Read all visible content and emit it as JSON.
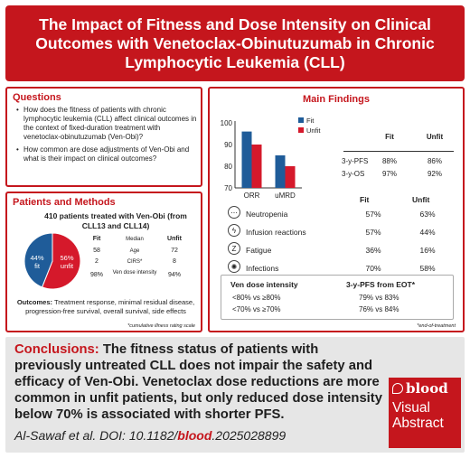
{
  "header": {
    "title": "The Impact of Fitness and Dose Intensity on Clinical Outcomes with Venetoclax-Obinutuzumab in Chronic Lymphocytic Leukemia (CLL)"
  },
  "questions": {
    "title": "Questions",
    "items": [
      "How does the fitness of patients with chronic lymphocytic leukemia (CLL) affect clinical outcomes in the context of fixed-duration treatment with venetoclax-obinutuzumab (Ven-Obi)?",
      "How common are dose adjustments of Ven-Obi and what is their impact on clinical outcomes?"
    ]
  },
  "methods": {
    "title": "Patients and Methods",
    "heading": "410 patients treated with Ven-Obi (from CLL13 and CLL14)",
    "pie": {
      "fit_pct": 44,
      "unfit_pct": 56,
      "fit_label": "44% fit",
      "unfit_label": "56% unfit",
      "fit_color": "#1f5c99",
      "unfit_color": "#d5192b"
    },
    "table": {
      "headers": [
        "Fit",
        "Median",
        "Unfit"
      ],
      "rows": [
        [
          "58",
          "Age",
          "72"
        ],
        [
          "2",
          "CIRS*",
          "8"
        ],
        [
          "98%",
          "Ven dose intensity",
          "94%"
        ]
      ]
    },
    "outcomes_label": "Outcomes:",
    "outcomes_text": " Treatment response, minimal residual disease, progression-free survival, overall survival, side effects",
    "footnote": "*cumulative illness rating scale"
  },
  "findings": {
    "title": "Main Findings",
    "legend": {
      "fit": "Fit",
      "unfit": "Unfit",
      "fit_color": "#1f5c99",
      "unfit_color": "#d5192b"
    },
    "survival_table": {
      "headers": [
        "Fit",
        "Unfit"
      ],
      "rows": [
        [
          "3-y-PFS",
          "88%",
          "86%"
        ],
        [
          "3-y-OS",
          "97%",
          "92%"
        ]
      ]
    },
    "ae_table": {
      "headers": [
        "Fit",
        "Unfit"
      ],
      "rows": [
        {
          "icon": "neutropenia-icon",
          "glyph": "⋯",
          "name": "Neutropenia",
          "fit": "57%",
          "unfit": "63%"
        },
        {
          "icon": "lightning-icon",
          "glyph": "ϟ",
          "name": "Infusion reactions",
          "fit": "57%",
          "unfit": "44%"
        },
        {
          "icon": "fatigue-icon",
          "glyph": "Z",
          "name": "Fatigue",
          "fit": "36%",
          "unfit": "16%"
        },
        {
          "icon": "infection-icon",
          "glyph": "✺",
          "name": "Infections",
          "fit": "70%",
          "unfit": "58%"
        }
      ]
    },
    "dose": {
      "heading_left": "Ven dose intensity",
      "heading_right": "3-y-PFS from EOT*",
      "rows": [
        [
          "<80% vs ≥80%",
          "79% vs 83%"
        ],
        [
          "<70% vs ≥70%",
          "76% vs 84%"
        ]
      ]
    },
    "footnote": "*end-of-treatment"
  },
  "chart_data": {
    "type": "bar",
    "categories": [
      "ORR",
      "uMRD"
    ],
    "series": [
      {
        "name": "Fit",
        "values": [
          96,
          85
        ]
      },
      {
        "name": "Unfit",
        "values": [
          90,
          80
        ]
      }
    ],
    "ylim": [
      70,
      100
    ],
    "yticks": [
      "70",
      "80",
      "90",
      "100"
    ],
    "xlabel": "",
    "ylabel": ""
  },
  "conclusions": {
    "label": "Conclusions:",
    "text": " The fitness status of patients with previously untreated CLL does not impair the safety and efficacy of Ven-Obi. Venetoclax dose reductions are more common in unfit patients, but only reduced dose intensity below 70% is associated with shorter PFS."
  },
  "citation": {
    "prefix": "Al-Sawaf et al. DOI: 10.1182/",
    "journal": "blood",
    "suffix": ".2025028899"
  },
  "badge": {
    "logo": "blood",
    "line1": "Visual",
    "line2": "Abstract"
  }
}
